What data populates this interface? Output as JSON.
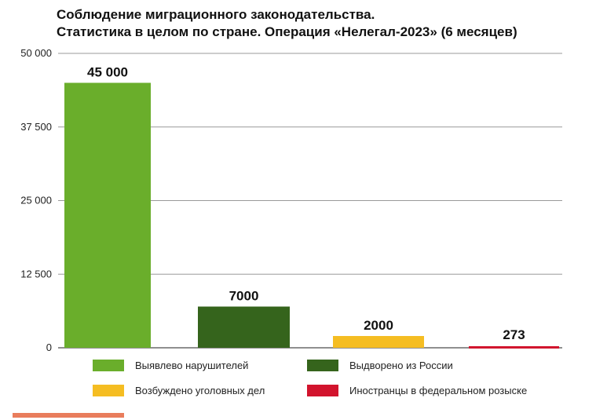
{
  "title_line1": "Соблюдение миграционного законодательства.",
  "title_line2": "Статистика в целом по стране. Операция «Нелегал-2023» (6 месяцев)",
  "chart_data": {
    "type": "bar",
    "title": "Соблюдение миграционного законодательства. Статистика в целом по стране. Операция «Нелегал-2023» (6 месяцев)",
    "xlabel": "",
    "ylabel": "",
    "ylim": [
      0,
      50000
    ],
    "yticks": [
      0,
      12500,
      25000,
      37500,
      50000
    ],
    "ytick_labels": [
      "0",
      "12 500",
      "25 000",
      "37 500",
      "50 000"
    ],
    "grid": true,
    "legend_position": "bottom",
    "categories": [
      "Выявлево нарушителей",
      "Выдворено из России",
      "Возбуждено уголовных дел",
      "Иностранцы в федеральном розыске"
    ],
    "values": [
      45000,
      7000,
      2000,
      273
    ],
    "value_labels": [
      "45 000",
      "7000",
      "2000",
      "273"
    ],
    "colors": [
      "#6aae2b",
      "#35641c",
      "#f5bd22",
      "#d2142d"
    ]
  },
  "legend": [
    {
      "label": "Выявлево нарушителей",
      "color": "#6aae2b"
    },
    {
      "label": "Выдворено из России",
      "color": "#35641c"
    },
    {
      "label": "Возбуждено уголовных дел",
      "color": "#f5bd22"
    },
    {
      "label": "Иностранцы в федеральном розыске",
      "color": "#d2142d"
    }
  ],
  "accent_color": "#e97d5c"
}
